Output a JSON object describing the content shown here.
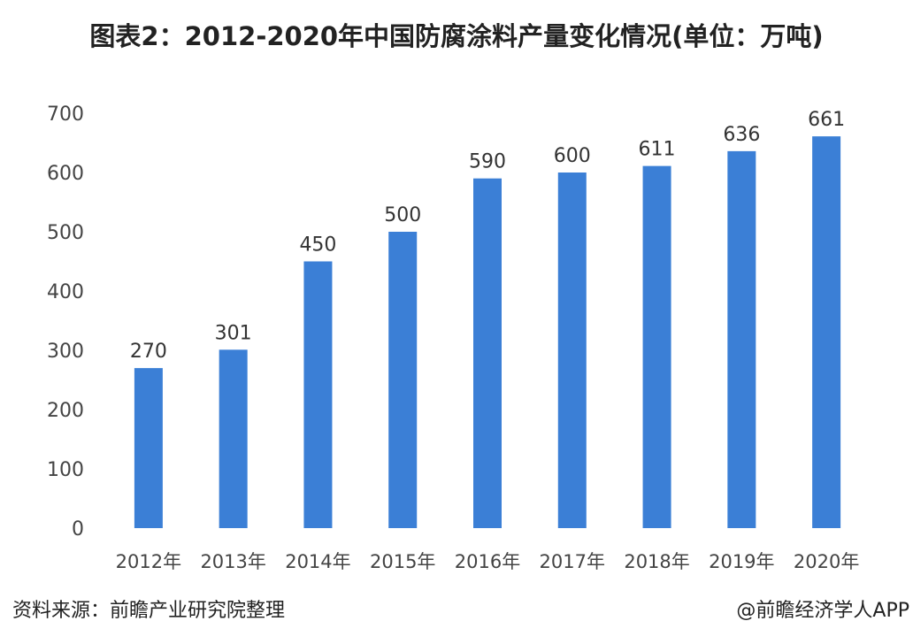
{
  "chart_data": {
    "type": "bar",
    "title": "图表2：2012-2020年中国防腐涂料产量变化情况(单位：万吨)",
    "categories": [
      "2012年",
      "2013年",
      "2014年",
      "2015年",
      "2016年",
      "2017年",
      "2018年",
      "2019年",
      "2020年"
    ],
    "values": [
      270,
      301,
      450,
      500,
      590,
      600,
      611,
      636,
      661
    ],
    "ylim": [
      0,
      700
    ],
    "yticks": [
      0,
      100,
      200,
      300,
      400,
      500,
      600,
      700
    ],
    "grid": false,
    "bar_color": "#3b7fd6",
    "data_labels": true
  },
  "footer": {
    "source": "资料来源：前瞻产业研究院整理",
    "credit": "@前瞻经济学人APP"
  }
}
